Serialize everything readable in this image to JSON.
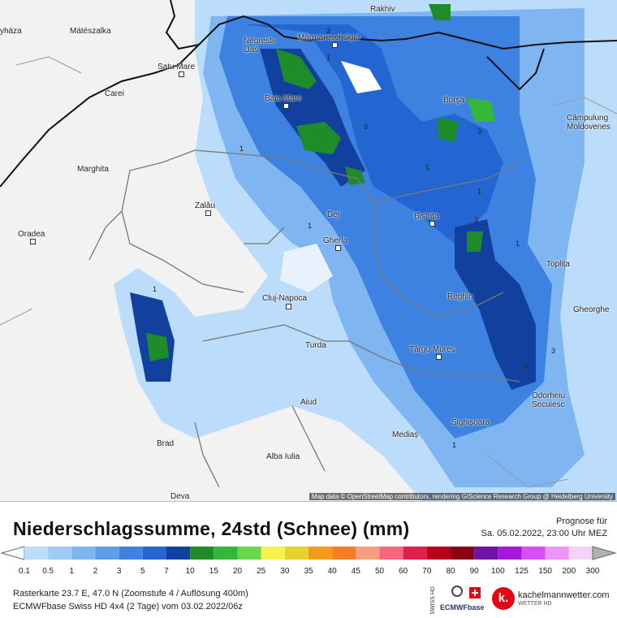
{
  "map": {
    "attribution": "Map data © OpenStreetMap contributors, rendering GIScience Research Group @ Heidelberg University",
    "cities": [
      {
        "id": "nyhaza",
        "name": "yháza"
      },
      {
        "id": "mateszalka",
        "name": "Mátészalka"
      },
      {
        "id": "satu-mare",
        "name": "Satu Mare"
      },
      {
        "id": "carei",
        "name": "Carei"
      },
      {
        "id": "negresti-oas",
        "name": "Negresti-\nOas"
      },
      {
        "id": "marmaroschsiget",
        "name": "Marmaroschsiget"
      },
      {
        "id": "rakhiv",
        "name": "Rakhiv"
      },
      {
        "id": "baia-mare",
        "name": "Baia Mare"
      },
      {
        "id": "borsa",
        "name": "Borşa"
      },
      {
        "id": "campulung",
        "name": "Câmpulung\nMoldovenes"
      },
      {
        "id": "marghita",
        "name": "Marghita"
      },
      {
        "id": "zalau",
        "name": "Zalău"
      },
      {
        "id": "oradea",
        "name": "Oradea"
      },
      {
        "id": "dej",
        "name": "Dej"
      },
      {
        "id": "bistrita",
        "name": "Bistriţa"
      },
      {
        "id": "gherla",
        "name": "Gherla"
      },
      {
        "id": "toplita",
        "name": "Toplița"
      },
      {
        "id": "cluj-napoca",
        "name": "Cluj-Napoca"
      },
      {
        "id": "reghin",
        "name": "Reghin"
      },
      {
        "id": "gheorghe",
        "name": "Gheorghe"
      },
      {
        "id": "turda",
        "name": "Turda"
      },
      {
        "id": "targu-mures",
        "name": "Târgu Mureș"
      },
      {
        "id": "odorheiu",
        "name": "Odorheiu\nSecuiesc"
      },
      {
        "id": "aiud",
        "name": "Aiud"
      },
      {
        "id": "sighisoara",
        "name": "Sighișoara"
      },
      {
        "id": "medias",
        "name": "Mediaș"
      },
      {
        "id": "brad",
        "name": "Brad"
      },
      {
        "id": "alba-iulia",
        "name": "Alba Iulia"
      },
      {
        "id": "deva",
        "name": "Deva"
      }
    ],
    "isolines": [
      {
        "id": "iso-a",
        "text": "3"
      },
      {
        "id": "iso-b",
        "text": "1"
      },
      {
        "id": "iso-c",
        "text": "3"
      },
      {
        "id": "iso-d",
        "text": "3"
      },
      {
        "id": "iso-e",
        "text": "1"
      },
      {
        "id": "iso-f",
        "text": "1"
      },
      {
        "id": "iso-g",
        "text": "1"
      },
      {
        "id": "iso-h",
        "text": "1"
      },
      {
        "id": "iso-i",
        "text": "3"
      },
      {
        "id": "iso-j",
        "text": "1"
      },
      {
        "id": "iso-k",
        "text": "1"
      },
      {
        "id": "iso-l",
        "text": "3"
      },
      {
        "id": "iso-m",
        "text": "3"
      },
      {
        "id": "iso-n",
        "text": "1"
      }
    ]
  },
  "legend": {
    "title": "Niederschlagssumme, 24std (Schnee) (mm)",
    "forecast_label": "Prognose für",
    "forecast_date": "Sa. 05.02.2022, 23:00 Uhr MEZ",
    "ticks": [
      "0.1",
      "0.5",
      "1",
      "2",
      "3",
      "5",
      "7",
      "10",
      "15",
      "20",
      "25",
      "30",
      "35",
      "40",
      "45",
      "50",
      "60",
      "70",
      "80",
      "90",
      "100",
      "125",
      "150",
      "200",
      "300"
    ],
    "colors": [
      "#bcdcfb",
      "#9ecbf7",
      "#7fb6f2",
      "#5d9eeb",
      "#3d82e0",
      "#2466d1",
      "#12409f",
      "#1f8c2a",
      "#34b83a",
      "#66d94a",
      "#f7f24b",
      "#e6d22e",
      "#f39b1c",
      "#f67d22",
      "#f79e7e",
      "#f7667c",
      "#e11f4c",
      "#b8001c",
      "#8b0014",
      "#6e13a4",
      "#a718d9",
      "#d84ef2",
      "#ef93f7",
      "#f4d3f7",
      "#d8d8d8",
      "#b0b0b0"
    ],
    "info_line1": "Rasterkarte 23.7 E, 47.0 N (Zoomstufe 4 / Auflösung 400m)",
    "info_line2": "ECMWFbase Swiss HD 4x4 (2 Tage) vom 03.02.2022/06z"
  },
  "branding": {
    "swiss_label": "SWISS HD",
    "ecmwf_label": "ECMWFbase",
    "km_letter": "k.",
    "km_name": "kachelmannwetter.com",
    "km_sub": "WETTER HD"
  }
}
